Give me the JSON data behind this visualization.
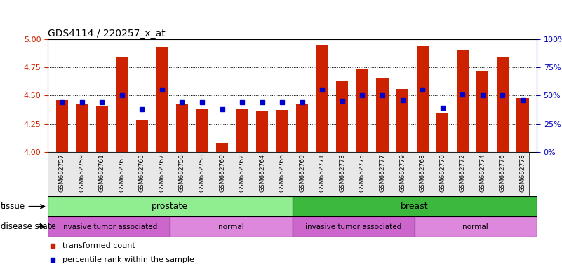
{
  "title": "GDS4114 / 220257_x_at",
  "samples": [
    "GSM662757",
    "GSM662759",
    "GSM662761",
    "GSM662763",
    "GSM662765",
    "GSM662767",
    "GSM662756",
    "GSM662758",
    "GSM662760",
    "GSM662762",
    "GSM662764",
    "GSM662766",
    "GSM662769",
    "GSM662771",
    "GSM662773",
    "GSM662775",
    "GSM662777",
    "GSM662779",
    "GSM662768",
    "GSM662770",
    "GSM662772",
    "GSM662774",
    "GSM662776",
    "GSM662778"
  ],
  "red_values": [
    4.46,
    4.42,
    4.4,
    4.84,
    4.28,
    4.93,
    4.42,
    4.38,
    4.08,
    4.38,
    4.36,
    4.37,
    4.42,
    4.95,
    4.63,
    4.74,
    4.65,
    4.56,
    4.94,
    4.35,
    4.9,
    4.72,
    4.84,
    4.48
  ],
  "blue_values": [
    44,
    44,
    44,
    50,
    38,
    55,
    44,
    44,
    38,
    44,
    44,
    44,
    44,
    55,
    45,
    50,
    50,
    46,
    55,
    39,
    51,
    50,
    50,
    46
  ],
  "ylim_left": [
    4.0,
    5.0
  ],
  "ylim_right": [
    0,
    100
  ],
  "yticks_left": [
    4.0,
    4.25,
    4.5,
    4.75,
    5.0
  ],
  "yticks_right": [
    0,
    25,
    50,
    75,
    100
  ],
  "tissue_groups": [
    {
      "label": "prostate",
      "start": 0,
      "end": 12,
      "color": "#90EE90"
    },
    {
      "label": "breast",
      "start": 12,
      "end": 24,
      "color": "#3CB83C"
    }
  ],
  "disease_groups": [
    {
      "label": "invasive tumor associated",
      "start": 0,
      "end": 6,
      "color": "#CC66CC"
    },
    {
      "label": "normal",
      "start": 6,
      "end": 12,
      "color": "#DD88DD"
    },
    {
      "label": "invasive tumor associated",
      "start": 12,
      "end": 18,
      "color": "#CC66CC"
    },
    {
      "label": "normal",
      "start": 18,
      "end": 24,
      "color": "#DD88DD"
    }
  ],
  "bar_color": "#CC2200",
  "dot_color": "#0000CC",
  "bg_color": "#FFFFFF",
  "grid_color": "#000000",
  "left_axis_color": "#CC2200",
  "right_axis_color": "#0000BB",
  "legend_items": [
    {
      "label": "transformed count",
      "color": "#CC2200"
    },
    {
      "label": "percentile rank within the sample",
      "color": "#0000CC"
    }
  ]
}
